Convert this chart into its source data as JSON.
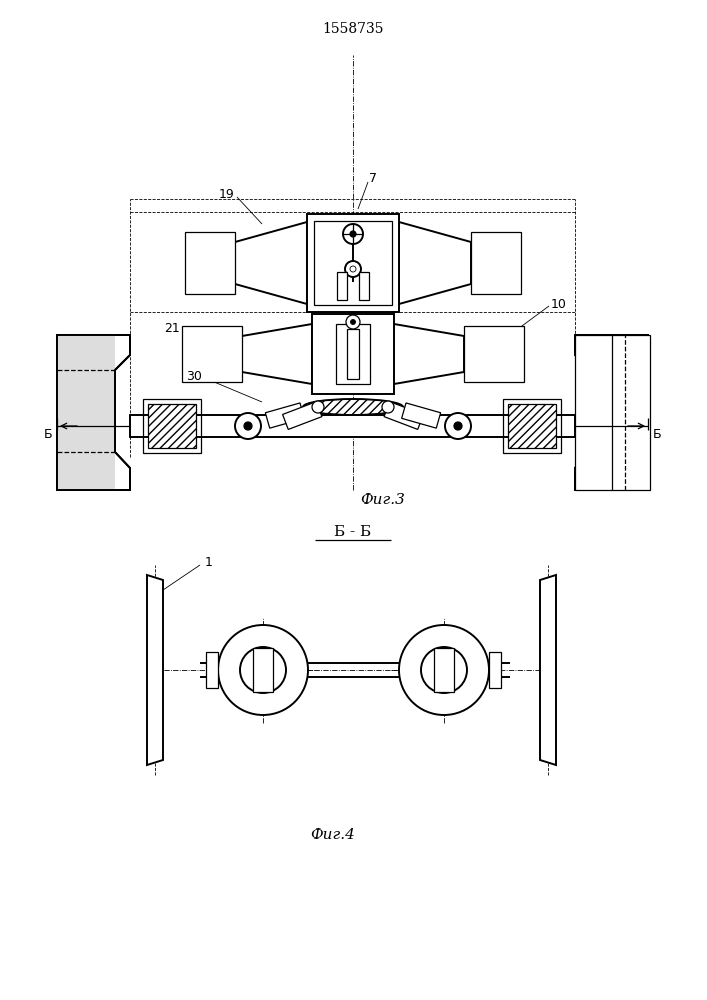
{
  "title": "1558735",
  "fig3_label": "Фиг.3",
  "fig4_label": "Фиг.4",
  "section_label": "Б - Б",
  "bg_color": "#ffffff",
  "line_color": "#000000",
  "label_7": "7",
  "label_19": "19",
  "label_10": "10",
  "label_21": "21",
  "label_30": "30",
  "label_B_left": "Б",
  "label_B_right": "Б",
  "label_1": "1"
}
